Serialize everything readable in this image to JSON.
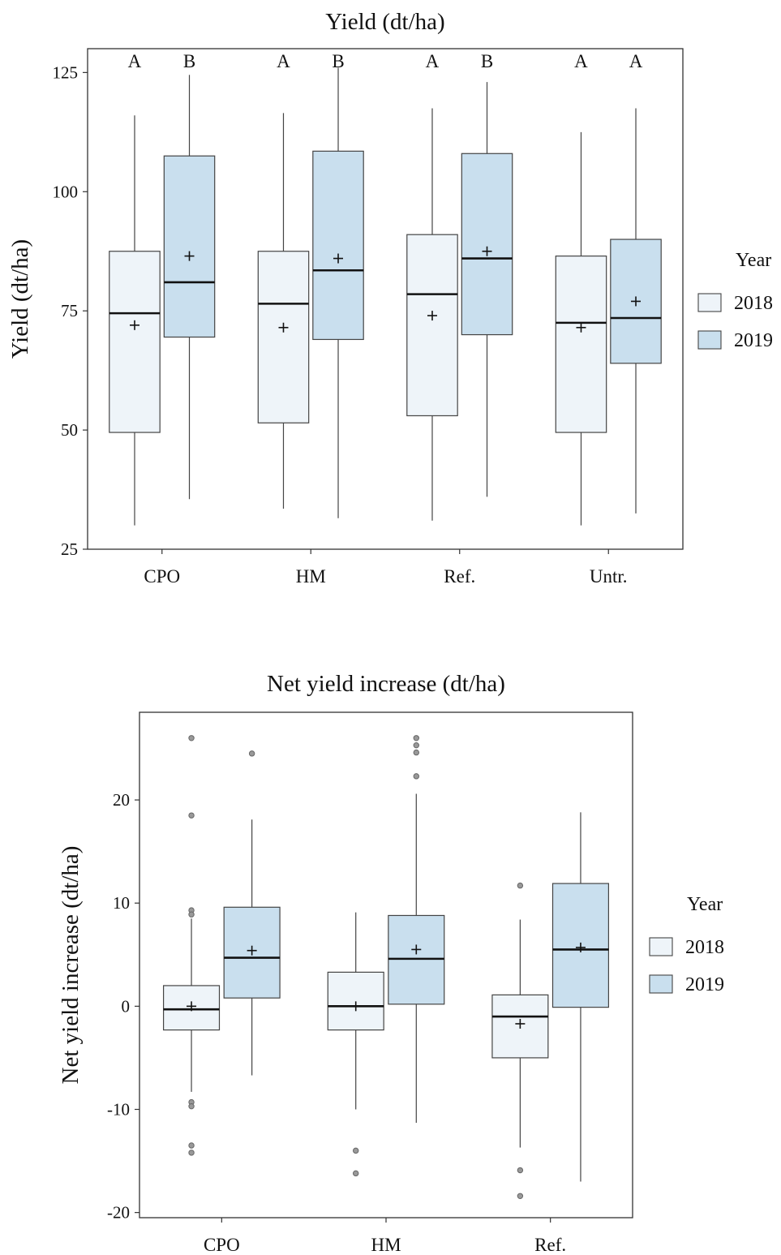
{
  "chart_data": [
    {
      "type": "box",
      "title": "Yield (dt/ha)",
      "xlabel": "",
      "ylabel": "Yield (dt/ha)",
      "ylim": [
        25,
        130
      ],
      "yticks": [
        25,
        50,
        75,
        100,
        125
      ],
      "categories": [
        "CPO",
        "HM",
        "Ref.",
        "Untr."
      ],
      "legend": {
        "title": "Year",
        "position": "right"
      },
      "colors": {
        "2018": "#eef4f9",
        "2019": "#c9dfee"
      },
      "series": [
        {
          "name": "2018",
          "boxes": [
            {
              "whisker_low": 30,
              "q1": 49.5,
              "median": 74.5,
              "q3": 87.5,
              "whisker_high": 116,
              "mean": 72,
              "outliers": []
            },
            {
              "whisker_low": 33.5,
              "q1": 51.5,
              "median": 76.5,
              "q3": 87.5,
              "whisker_high": 116.5,
              "mean": 71.5,
              "outliers": []
            },
            {
              "whisker_low": 31,
              "q1": 53,
              "median": 78.5,
              "q3": 91,
              "whisker_high": 117.5,
              "mean": 74,
              "outliers": []
            },
            {
              "whisker_low": 30,
              "q1": 49.5,
              "median": 72.5,
              "q3": 86.5,
              "whisker_high": 112.5,
              "mean": 71.5,
              "outliers": []
            }
          ],
          "letters": [
            "A",
            "A",
            "A",
            "A"
          ]
        },
        {
          "name": "2019",
          "boxes": [
            {
              "whisker_low": 35.5,
              "q1": 69.5,
              "median": 81,
              "q3": 107.5,
              "whisker_high": 124.5,
              "mean": 86.5,
              "outliers": []
            },
            {
              "whisker_low": 31.5,
              "q1": 69,
              "median": 83.5,
              "q3": 108.5,
              "whisker_high": 126,
              "mean": 86,
              "outliers": []
            },
            {
              "whisker_low": 36,
              "q1": 70,
              "median": 86,
              "q3": 108,
              "whisker_high": 123,
              "mean": 87.5,
              "outliers": []
            },
            {
              "whisker_low": 32.5,
              "q1": 64,
              "median": 73.5,
              "q3": 90,
              "whisker_high": 117.5,
              "mean": 77,
              "outliers": []
            }
          ],
          "letters": [
            "B",
            "B",
            "B",
            "A"
          ]
        }
      ]
    },
    {
      "type": "box",
      "title": "Net yield increase (dt/ha)",
      "xlabel": "",
      "ylabel": "Net yield increase (dt/ha)",
      "ylim": [
        -20.5,
        28.5
      ],
      "yticks": [
        -20,
        -10,
        0,
        10,
        20
      ],
      "categories": [
        "CPO",
        "HM",
        "Ref."
      ],
      "legend": {
        "title": "Year",
        "position": "right"
      },
      "colors": {
        "2018": "#eef4f9",
        "2019": "#c9dfee"
      },
      "series": [
        {
          "name": "2018",
          "boxes": [
            {
              "whisker_low": -8.3,
              "q1": -2.3,
              "median": -0.3,
              "q3": 2,
              "whisker_high": 8.5,
              "mean": 0,
              "outliers": [
                26,
                18.5,
                9.3,
                8.9,
                -9.3,
                -9.7,
                -13.5,
                -14.2
              ]
            },
            {
              "whisker_low": -10,
              "q1": -2.3,
              "median": 0,
              "q3": 3.3,
              "whisker_high": 9.1,
              "mean": 0,
              "outliers": [
                -14,
                -16.2
              ]
            },
            {
              "whisker_low": -13.7,
              "q1": -5,
              "median": -1,
              "q3": 1.1,
              "whisker_high": 8.4,
              "mean": -1.7,
              "outliers": [
                11.7,
                -15.9,
                -18.4
              ]
            }
          ]
        },
        {
          "name": "2019",
          "boxes": [
            {
              "whisker_low": -6.7,
              "q1": 0.8,
              "median": 4.7,
              "q3": 9.6,
              "whisker_high": 18.1,
              "mean": 5.4,
              "outliers": [
                24.5
              ]
            },
            {
              "whisker_low": -11.3,
              "q1": 0.2,
              "median": 4.6,
              "q3": 8.8,
              "whisker_high": 20.6,
              "mean": 5.5,
              "outliers": [
                26,
                25.3,
                24.6,
                22.3
              ]
            },
            {
              "whisker_low": -17,
              "q1": -0.1,
              "median": 5.5,
              "q3": 11.9,
              "whisker_high": 18.8,
              "mean": 5.7,
              "outliers": []
            }
          ]
        }
      ]
    }
  ]
}
